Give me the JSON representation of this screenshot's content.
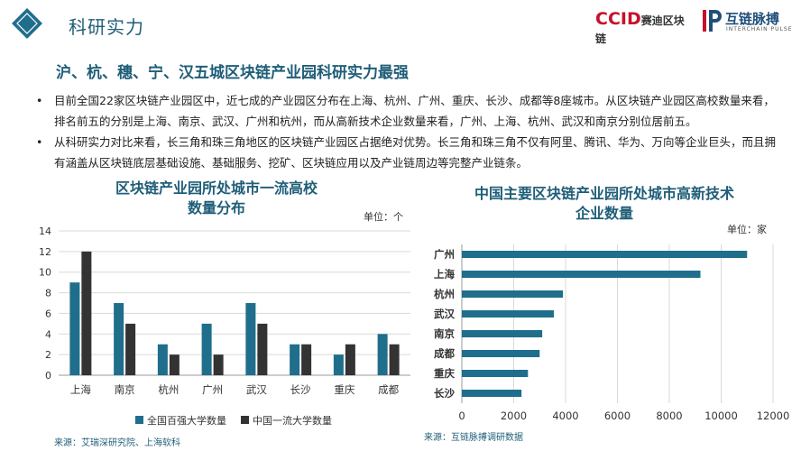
{
  "header": {
    "section_title": "科研实力",
    "ccid_logo_text": "CCID",
    "ccid_logo_sub": "赛迪区块链",
    "ip_logo_name": "互链脉搏",
    "ip_logo_sub": "INTERCHAIN PULSE"
  },
  "headline": "沪、杭、穗、宁、汉五城区块链产业园科研实力最强",
  "bullets": [
    "目前全国22家区块链产业园区中，近七成的产业园区分布在上海、杭州、广州、重庆、长沙、成都等8座城市。从区块链产业园区高校数量来看，排名前五的分别是上海、南京、武汉、广州和杭州，而从高新技术企业数量来看，广州、上海、杭州、武汉和南京分别位居前五。",
    "从科研实力对比来看，长三角和珠三角地区的区块链产业园区占据绝对优势。长三角和珠三角不仅有阿里、腾讯、华为、万向等企业巨头，而且拥有涵盖从区块链底层基础设施、基础服务、挖矿、区块链应用以及产业链周边等完整产业链条。"
  ],
  "bullet_marker": "•",
  "left_chart": {
    "title_line1": "区块链产业园所处城市一流高校",
    "title_line2": "数量分布",
    "unit": "单位：个",
    "source": "来源：艾瑞深研究院、上海软科"
  },
  "right_chart": {
    "title_line1": "中国主要区块链产业园所处城市高新技术",
    "title_line2": "企业数量",
    "unit": "单位：家",
    "source": "来源：互链脉搏调研数据"
  },
  "colors": {
    "teal": "#1f6e8c",
    "dark": "#333333",
    "title": "#1f5e78",
    "ccid_red": "#c8102e"
  },
  "chart_data": [
    {
      "type": "bar",
      "title": "区块链产业园所处城市一流高校数量分布",
      "categories": [
        "上海",
        "南京",
        "杭州",
        "广州",
        "武汉",
        "长沙",
        "重庆",
        "成都"
      ],
      "series": [
        {
          "name": "全国百强大学数量",
          "values": [
            9,
            7,
            3,
            5,
            7,
            3,
            2,
            4
          ]
        },
        {
          "name": "中国一流大学数量",
          "values": [
            12,
            5,
            2,
            2,
            5,
            3,
            3,
            3
          ]
        }
      ],
      "ylim": [
        0,
        14
      ],
      "yticks": [
        0,
        2,
        4,
        6,
        8,
        10,
        12,
        14
      ],
      "grid": true,
      "legend": "bottom"
    },
    {
      "type": "bar",
      "orientation": "horizontal",
      "title": "中国主要区块链产业园所处城市高新技术企业数量",
      "categories": [
        "广州",
        "上海",
        "杭州",
        "武汉",
        "南京",
        "成都",
        "重庆",
        "长沙"
      ],
      "values": [
        11000,
        9200,
        3900,
        3550,
        3100,
        3000,
        2550,
        2300
      ],
      "xlim": [
        0,
        12000
      ],
      "xticks": [
        0,
        2000,
        4000,
        6000,
        8000,
        10000,
        12000
      ],
      "grid": true
    }
  ]
}
